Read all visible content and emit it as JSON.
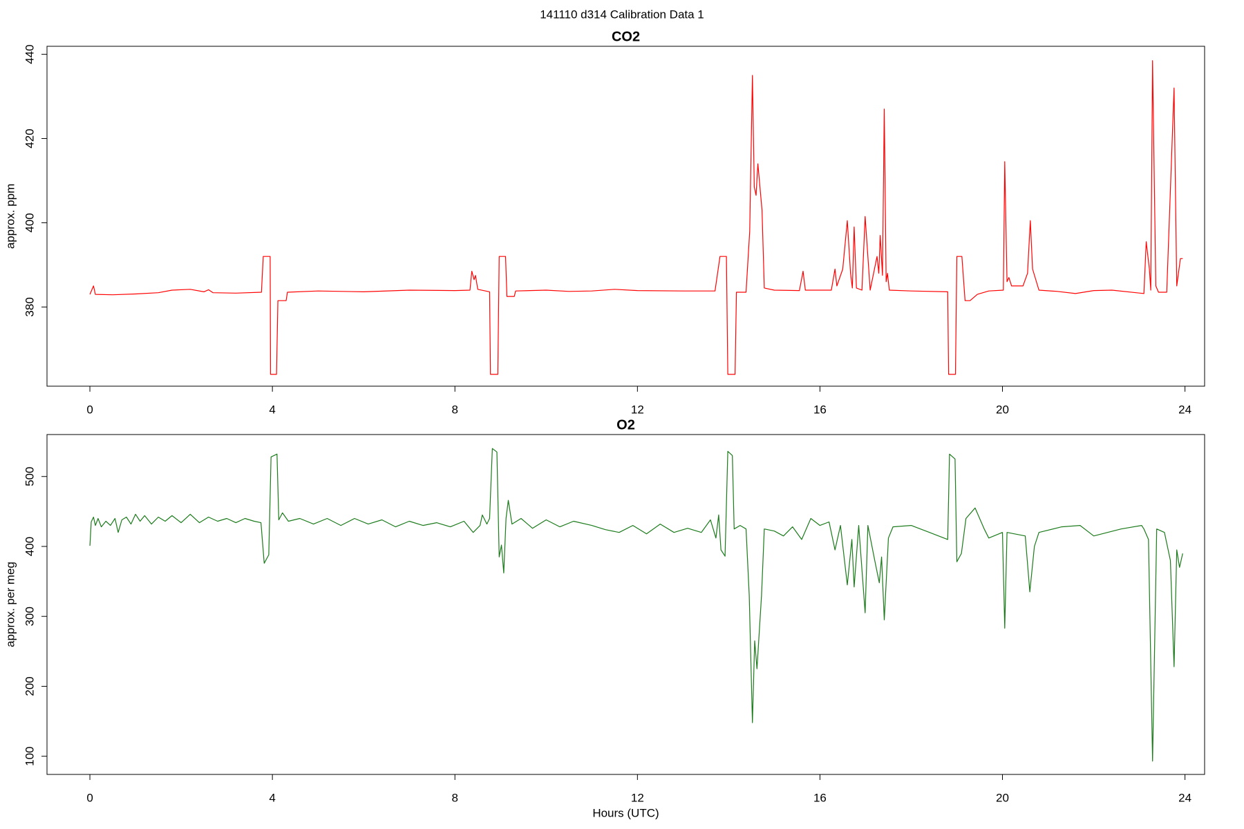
{
  "title": "141110   d314   Calibration Data 1",
  "chart_data": [
    {
      "type": "line",
      "title": "CO2",
      "ylabel": "approx. ppm",
      "color": "#ff0000",
      "xlim": [
        -0.94,
        24.43
      ],
      "xticks": [
        0,
        4,
        8,
        12,
        16,
        20,
        24
      ],
      "ylim": [
        361.2,
        441.9
      ],
      "yticks": [
        380,
        400,
        420,
        440
      ],
      "x": [
        0,
        0.08,
        0.12,
        0.5,
        1.0,
        1.5,
        1.8,
        2.2,
        2.5,
        2.6,
        2.7,
        3.2,
        3.76,
        3.8,
        3.95,
        3.96,
        4.09,
        4.12,
        4.3,
        4.33,
        5.0,
        6.0,
        7.0,
        8.0,
        8.33,
        8.37,
        8.42,
        8.45,
        8.5,
        8.76,
        8.78,
        8.94,
        8.97,
        9.11,
        9.14,
        9.3,
        9.33,
        10.0,
        10.5,
        11.0,
        11.5,
        12.0,
        13.0,
        13.7,
        13.81,
        13.95,
        13.98,
        14.14,
        14.17,
        14.38,
        14.46,
        14.52,
        14.56,
        14.6,
        14.64,
        14.73,
        14.78,
        15.0,
        15.55,
        15.63,
        15.68,
        16.25,
        16.33,
        16.37,
        16.5,
        16.6,
        16.67,
        16.71,
        16.75,
        16.8,
        16.92,
        16.99,
        17.1,
        17.25,
        17.29,
        17.32,
        17.37,
        17.41,
        17.45,
        17.48,
        17.52,
        18.0,
        18.8,
        18.82,
        18.97,
        19.0,
        19.11,
        19.18,
        19.29,
        19.45,
        19.7,
        20.02,
        20.05,
        20.1,
        20.14,
        20.2,
        20.45,
        20.55,
        20.61,
        20.66,
        20.8,
        21.2,
        21.6,
        22.0,
        22.4,
        23.1,
        23.15,
        23.22,
        23.25,
        23.29,
        23.36,
        23.42,
        23.6,
        23.76,
        23.82,
        23.9,
        23.95
      ],
      "values": [
        383,
        385,
        383,
        382.9,
        383.1,
        383.4,
        384,
        384.2,
        383.6,
        384.1,
        383.4,
        383.3,
        383.5,
        392,
        392,
        364,
        364,
        381.5,
        381.5,
        383.5,
        383.8,
        383.6,
        384,
        383.9,
        384,
        388.5,
        386.5,
        387.5,
        384.2,
        383.6,
        364,
        364,
        392,
        392,
        382.5,
        382.5,
        383.8,
        384,
        383.7,
        383.8,
        384.2,
        383.9,
        383.8,
        383.8,
        392,
        392,
        364,
        364,
        383.5,
        383.5,
        398,
        435,
        408.5,
        406.5,
        414,
        403,
        384.5,
        384,
        383.9,
        388.5,
        384,
        384,
        389,
        385,
        389,
        400.5,
        388,
        384.5,
        399,
        384.5,
        384,
        401.5,
        384,
        392,
        388,
        397,
        387.5,
        427,
        386,
        388,
        384,
        383.8,
        383.6,
        364,
        364,
        392,
        392,
        381.5,
        381.5,
        383,
        383.8,
        384,
        414.5,
        386,
        387,
        385,
        385,
        388,
        400.5,
        389,
        384,
        383.7,
        383.2,
        383.9,
        384,
        383.2,
        395.5,
        389,
        384,
        438.5,
        385,
        383.5,
        383.5,
        432,
        385,
        391.5,
        391.5
      ]
    },
    {
      "type": "line",
      "title": "O2",
      "ylabel": "approx. per meg",
      "xlabel": "Hours (UTC)",
      "color": "#1a7a1a",
      "xlim": [
        -0.94,
        24.43
      ],
      "xticks": [
        0,
        4,
        8,
        12,
        16,
        20,
        24
      ],
      "ylim": [
        74,
        560
      ],
      "yticks": [
        100,
        200,
        300,
        400,
        500
      ],
      "x": [
        0,
        0.03,
        0.08,
        0.12,
        0.18,
        0.25,
        0.35,
        0.45,
        0.55,
        0.62,
        0.7,
        0.8,
        0.9,
        1.0,
        1.1,
        1.2,
        1.35,
        1.5,
        1.65,
        1.8,
        2.0,
        2.2,
        2.4,
        2.6,
        2.8,
        3.0,
        3.2,
        3.4,
        3.6,
        3.75,
        3.82,
        3.92,
        3.97,
        4.1,
        4.14,
        4.22,
        4.35,
        4.6,
        4.9,
        5.2,
        5.5,
        5.8,
        6.1,
        6.4,
        6.7,
        7.0,
        7.3,
        7.6,
        7.9,
        8.2,
        8.4,
        8.55,
        8.6,
        8.7,
        8.76,
        8.82,
        8.92,
        8.97,
        9.02,
        9.07,
        9.12,
        9.17,
        9.25,
        9.45,
        9.7,
        10.0,
        10.3,
        10.6,
        11.0,
        11.3,
        11.6,
        11.9,
        12.2,
        12.5,
        12.8,
        13.1,
        13.4,
        13.6,
        13.72,
        13.78,
        13.83,
        13.92,
        13.98,
        14.08,
        14.12,
        14.25,
        14.38,
        14.45,
        14.52,
        14.57,
        14.62,
        14.72,
        14.78,
        15.0,
        15.2,
        15.4,
        15.6,
        15.8,
        16.0,
        16.2,
        16.33,
        16.45,
        16.6,
        16.7,
        16.75,
        16.85,
        16.99,
        17.05,
        17.2,
        17.3,
        17.35,
        17.41,
        17.5,
        17.6,
        18.0,
        18.4,
        18.8,
        18.84,
        18.96,
        19.0,
        19.1,
        19.2,
        19.4,
        19.6,
        19.7,
        20.0,
        20.05,
        20.1,
        20.5,
        20.6,
        20.7,
        20.8,
        21.3,
        21.7,
        22.0,
        22.6,
        23.05,
        23.1,
        23.2,
        23.29,
        23.38,
        23.55,
        23.68,
        23.76,
        23.82,
        23.88,
        23.95
      ],
      "values": [
        401,
        435,
        442,
        430,
        440,
        428,
        436,
        430,
        440,
        420,
        438,
        442,
        432,
        446,
        436,
        444,
        432,
        442,
        436,
        444,
        434,
        446,
        434,
        442,
        436,
        440,
        434,
        440,
        436,
        434,
        376,
        388,
        528,
        532,
        438,
        448,
        436,
        440,
        432,
        440,
        430,
        440,
        432,
        438,
        428,
        436,
        430,
        434,
        428,
        436,
        420,
        430,
        445,
        432,
        440,
        540,
        535,
        385,
        402,
        362,
        440,
        466,
        432,
        440,
        426,
        438,
        428,
        436,
        430,
        424,
        420,
        430,
        418,
        432,
        420,
        426,
        420,
        438,
        412,
        445,
        395,
        386,
        536,
        530,
        425,
        430,
        425,
        330,
        148,
        265,
        225,
        330,
        425,
        422,
        415,
        428,
        410,
        440,
        430,
        435,
        395,
        430,
        345,
        410,
        342,
        430,
        305,
        430,
        380,
        348,
        385,
        295,
        412,
        428,
        430,
        420,
        410,
        532,
        525,
        378,
        390,
        440,
        455,
        425,
        412,
        420,
        283,
        420,
        415,
        335,
        400,
        420,
        428,
        430,
        415,
        425,
        430,
        425,
        410,
        93,
        425,
        420,
        380,
        228,
        395,
        370,
        390
      ]
    }
  ]
}
